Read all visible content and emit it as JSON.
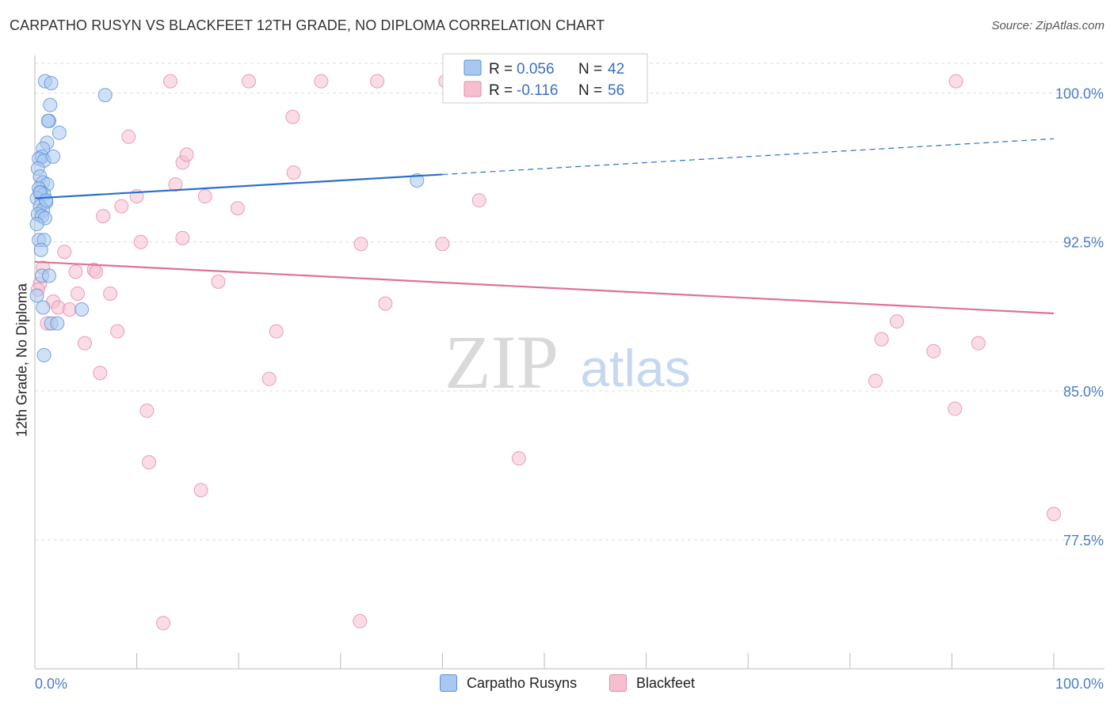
{
  "title": "CARPATHO RUSYN VS BLACKFEET 12TH GRADE, NO DIPLOMA CORRELATION CHART",
  "source": "Source: ZipAtlas.com",
  "watermark": {
    "zip": "ZIP",
    "atlas": "atlas"
  },
  "colors": {
    "blue_fill": "#a9c8f0",
    "blue_stroke": "#5b8fd6",
    "blue_line": "#2b6fcc",
    "pink_fill": "#f6bfd0",
    "pink_stroke": "#e48aa8",
    "pink_line": "#e0709a",
    "axis_text": "#4a7cc9",
    "grid": "#dddddd"
  },
  "legend": {
    "rows": [
      {
        "r_label": "R =",
        "r_value": "0.056",
        "n_label": "N =",
        "n_value": "42"
      },
      {
        "r_label": "R =",
        "r_value": "-0.116",
        "n_label": "N =",
        "n_value": "56"
      }
    ]
  },
  "chart_data": {
    "type": "scatter",
    "title": "CARPATHO RUSYN VS BLACKFEET 12TH GRADE, NO DIPLOMA CORRELATION CHART",
    "xlabel": "",
    "ylabel": "12th Grade, No Diploma",
    "xlim": [
      0,
      100
    ],
    "ylim": [
      71,
      101.5
    ],
    "x_tick_labels": [
      "0.0%",
      "100.0%"
    ],
    "y_ticks": [
      77.5,
      85.0,
      92.5,
      100.0
    ],
    "y_tick_labels": [
      "77.5%",
      "85.0%",
      "92.5%",
      "100.0%"
    ],
    "grid": true,
    "legend_position": "top-center",
    "series": [
      {
        "name": "Carpatho Rusyns",
        "color": "#a9c8f0",
        "r": 0.056,
        "n": 42,
        "trend": {
          "x": [
            0,
            40
          ],
          "y": [
            94.7,
            95.9
          ],
          "dashed_to": [
            100,
            97.7
          ]
        },
        "points": [
          [
            1.0,
            100.6
          ],
          [
            1.6,
            100.5
          ],
          [
            6.9,
            99.9
          ],
          [
            1.5,
            99.4
          ],
          [
            1.4,
            98.6
          ],
          [
            1.3,
            98.6
          ],
          [
            2.4,
            98.0
          ],
          [
            1.2,
            97.5
          ],
          [
            0.8,
            97.2
          ],
          [
            0.7,
            96.8
          ],
          [
            0.4,
            96.7
          ],
          [
            0.9,
            96.6
          ],
          [
            1.8,
            96.8
          ],
          [
            0.3,
            96.2
          ],
          [
            0.5,
            95.8
          ],
          [
            0.8,
            95.5
          ],
          [
            1.2,
            95.4
          ],
          [
            0.4,
            95.2
          ],
          [
            0.6,
            95.0
          ],
          [
            0.9,
            94.9
          ],
          [
            0.2,
            94.7
          ],
          [
            1.1,
            94.5
          ],
          [
            0.5,
            94.3
          ],
          [
            0.8,
            94.1
          ],
          [
            0.3,
            93.9
          ],
          [
            0.7,
            93.8
          ],
          [
            1.0,
            93.7
          ],
          [
            0.2,
            93.4
          ],
          [
            0.4,
            92.6
          ],
          [
            0.9,
            92.6
          ],
          [
            0.6,
            92.1
          ],
          [
            0.7,
            90.8
          ],
          [
            1.4,
            90.8
          ],
          [
            0.2,
            89.8
          ],
          [
            0.8,
            89.2
          ],
          [
            4.6,
            89.1
          ],
          [
            1.6,
            88.4
          ],
          [
            2.2,
            88.4
          ],
          [
            0.9,
            86.8
          ],
          [
            37.5,
            95.6
          ],
          [
            0.5,
            95.0
          ],
          [
            1.1,
            94.6
          ]
        ]
      },
      {
        "name": "Blackfeet",
        "color": "#f6bfd0",
        "r": -0.116,
        "n": 56,
        "trend": {
          "x": [
            0,
            100
          ],
          "y": [
            91.5,
            88.9
          ]
        },
        "points": [
          [
            13.3,
            100.6
          ],
          [
            21.0,
            100.6
          ],
          [
            28.1,
            100.6
          ],
          [
            33.6,
            100.6
          ],
          [
            40.3,
            100.6
          ],
          [
            46.9,
            100.6
          ],
          [
            90.4,
            100.6
          ],
          [
            25.3,
            98.8
          ],
          [
            9.2,
            97.8
          ],
          [
            14.5,
            96.5
          ],
          [
            14.9,
            96.9
          ],
          [
            25.4,
            96.0
          ],
          [
            13.8,
            95.4
          ],
          [
            10.0,
            94.8
          ],
          [
            16.7,
            94.8
          ],
          [
            43.6,
            94.6
          ],
          [
            8.5,
            94.3
          ],
          [
            19.9,
            94.2
          ],
          [
            6.7,
            93.8
          ],
          [
            10.4,
            92.5
          ],
          [
            14.5,
            92.7
          ],
          [
            32.0,
            92.4
          ],
          [
            40.0,
            92.4
          ],
          [
            2.9,
            92.0
          ],
          [
            0.8,
            91.2
          ],
          [
            4.0,
            91.0
          ],
          [
            5.8,
            91.1
          ],
          [
            6.0,
            91.0
          ],
          [
            18.0,
            90.5
          ],
          [
            0.5,
            90.4
          ],
          [
            4.2,
            89.9
          ],
          [
            7.4,
            89.9
          ],
          [
            1.8,
            89.5
          ],
          [
            2.3,
            89.2
          ],
          [
            3.4,
            89.1
          ],
          [
            34.4,
            89.4
          ],
          [
            1.2,
            88.4
          ],
          [
            8.1,
            88.0
          ],
          [
            23.7,
            88.0
          ],
          [
            84.6,
            88.5
          ],
          [
            4.9,
            87.4
          ],
          [
            83.1,
            87.6
          ],
          [
            88.2,
            87.0
          ],
          [
            92.6,
            87.4
          ],
          [
            6.4,
            85.9
          ],
          [
            23.0,
            85.6
          ],
          [
            82.5,
            85.5
          ],
          [
            11.0,
            84.0
          ],
          [
            90.3,
            84.1
          ],
          [
            47.5,
            81.6
          ],
          [
            11.2,
            81.4
          ],
          [
            16.3,
            80.0
          ],
          [
            100.0,
            78.8
          ],
          [
            12.6,
            73.3
          ],
          [
            31.9,
            73.4
          ],
          [
            0.3,
            90.1
          ]
        ]
      }
    ]
  },
  "bottom_legend": [
    {
      "label": "Carpatho Rusyns"
    },
    {
      "label": "Blackfeet"
    }
  ]
}
